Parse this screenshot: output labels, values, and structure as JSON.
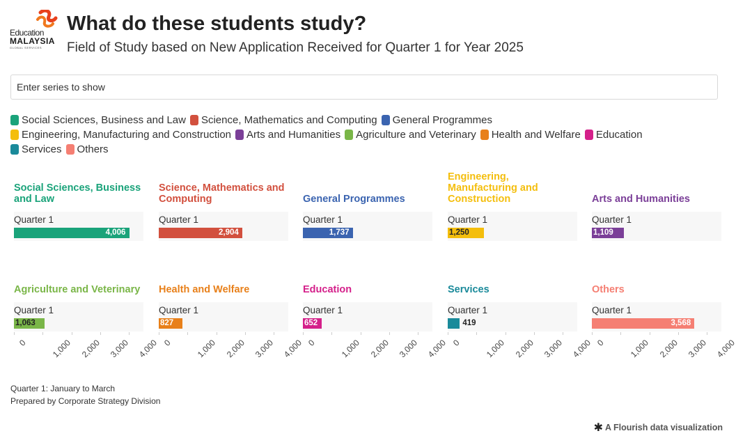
{
  "header": {
    "logo_top": "Education",
    "logo_main": "MALAYSIA",
    "logo_sub": "GLOBAL SERVICES",
    "title": "What do these students study?",
    "subtitle": "Field of Study based on New Application Received for Quarter 1 for Year 2025"
  },
  "search": {
    "placeholder": "Enter series to show"
  },
  "legend": {
    "rows": [
      [
        0,
        1,
        2
      ],
      [
        3,
        4,
        5,
        6,
        7
      ],
      [
        8,
        9
      ]
    ]
  },
  "colors": {
    "Social Sciences, Business and Law": "#1aa37a",
    "Science, Mathematics and Computing": "#d2503e",
    "General Programmes": "#3b64b0",
    "Engineering, Manufacturing and Construction": "#f4be0d",
    "Arts and Humanities": "#7b3f98",
    "Agriculture and Veterinary": "#7ab648",
    "Health and Welfare": "#e8801a",
    "Education": "#d4208a",
    "Services": "#1a8a9a",
    "Others": "#f57f73"
  },
  "chart_data": {
    "type": "bar",
    "orientation": "horizontal",
    "small_multiples": true,
    "categories": [
      "Quarter 1"
    ],
    "series": [
      {
        "name": "Social Sciences, Business and Law",
        "values": [
          4006
        ],
        "label": "4,006"
      },
      {
        "name": "Science, Mathematics and Computing",
        "values": [
          2904
        ],
        "label": "2,904"
      },
      {
        "name": "General Programmes",
        "values": [
          1737
        ],
        "label": "1,737"
      },
      {
        "name": "Engineering, Manufacturing and Construction",
        "values": [
          1250
        ],
        "label": "1,250"
      },
      {
        "name": "Arts and Humanities",
        "values": [
          1109
        ],
        "label": "1,109"
      },
      {
        "name": "Agriculture and Veterinary",
        "values": [
          1063
        ],
        "label": "1,063"
      },
      {
        "name": "Health and Welfare",
        "values": [
          827
        ],
        "label": "827"
      },
      {
        "name": "Education",
        "values": [
          652
        ],
        "label": "652"
      },
      {
        "name": "Services",
        "values": [
          419
        ],
        "label": "419"
      },
      {
        "name": "Others",
        "values": [
          3568
        ],
        "label": "3,568"
      }
    ],
    "panel_titles": [
      "Social Sciences, Business and Law",
      "Science, Mathematics and Computing",
      "General Programmes",
      "Engineering, Manufacturing and Construction",
      "Arts and Humanities",
      "Agriculture and Veterinary",
      "Health and Welfare",
      "Education",
      "Services",
      "Others"
    ],
    "xlim": [
      0,
      4500
    ],
    "xticks": [
      0,
      1000,
      2000,
      3000,
      4000
    ],
    "xtick_labels": [
      "0",
      "1,000",
      "2,000",
      "3,000",
      "4,000"
    ],
    "grid": false
  },
  "footer": {
    "note1": "Quarter 1: January to March",
    "note2": "Prepared by Corporate Strategy Division",
    "credit": "A Flourish data visualization"
  }
}
